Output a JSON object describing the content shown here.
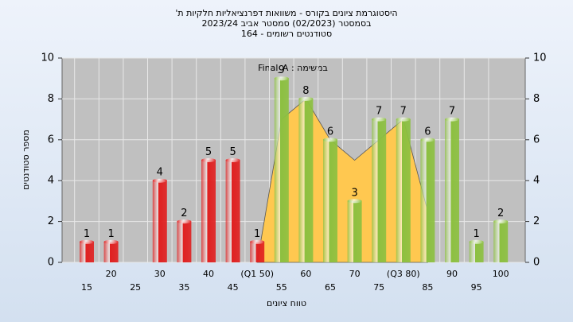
{
  "chart_data": {
    "type": "bar",
    "title": "היסטוגרמת ציונים בקורס - משוואות דפרנציאליות חלקיות ת'",
    "subtitle": "בסמסטר  (02/2023)  סמסטר אביב 2023/24",
    "subtitle2": "סטודנטים רשומים - 164",
    "annotation": "במשימה : Final_A",
    "x_label": "טווח ציונים",
    "y_label": "מספר סטודנטים",
    "categories": [
      "15",
      "20",
      "25",
      "30",
      "35",
      "40",
      "45",
      "(Q1 50)",
      "55",
      "60",
      "65",
      "70",
      "75",
      "(Q3 80)",
      "85",
      "90",
      "95",
      "100"
    ],
    "values": [
      1,
      1,
      null,
      4,
      2,
      5,
      5,
      1,
      9,
      8,
      6,
      3,
      7,
      7,
      6,
      7,
      1,
      2
    ],
    "colors": [
      "#e02020",
      "#e02020",
      "#e02020",
      "#e02020",
      "#e02020",
      "#e02020",
      "#e02020",
      "#e02020",
      "#8cc040",
      "#8cc040",
      "#8cc040",
      "#8cc040",
      "#8cc040",
      "#8cc040",
      "#8cc040",
      "#8cc040",
      "#8cc040",
      "#8cc040"
    ],
    "area_values": [
      null,
      null,
      null,
      null,
      null,
      null,
      null,
      0,
      7,
      8,
      6,
      5,
      6,
      7,
      2.5,
      null,
      null,
      null
    ],
    "area_color": "#ffc850",
    "ylim": [
      0,
      10
    ],
    "yticks": [
      0,
      2,
      4,
      6,
      8,
      10
    ],
    "y2lim": [
      0,
      10
    ],
    "y2ticks": [
      0,
      2,
      4,
      6,
      8,
      10
    ],
    "grid": true
  }
}
